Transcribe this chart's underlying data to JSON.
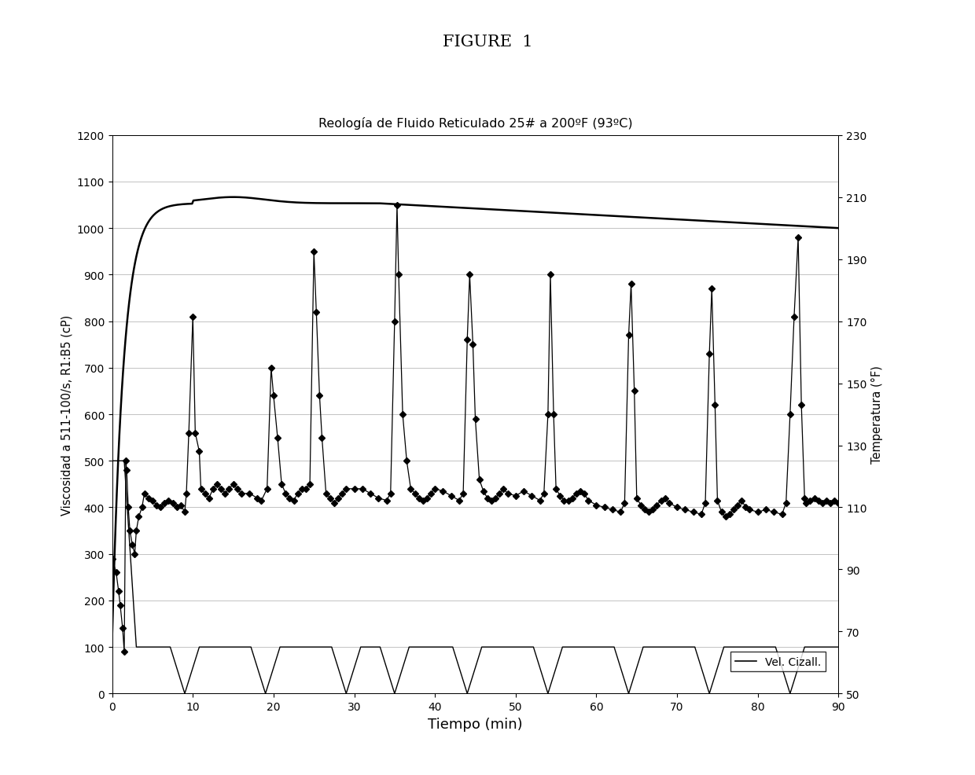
{
  "title_figure": "FIGURE  1",
  "title_chart": "Reología de Fluido Reticulado 25# a 200ºF (93ºC)",
  "xlabel": "Tiempo (min)",
  "ylabel_left": "Viscosidad a 511-100/s, R1:B5 (cP)",
  "ylabel_right": "Temperatura (°F)",
  "xlim": [
    0,
    90
  ],
  "ylim_left": [
    0,
    1200
  ],
  "ylim_right": [
    50,
    230
  ],
  "yticks_left": [
    0,
    100,
    200,
    300,
    400,
    500,
    600,
    700,
    800,
    900,
    1000,
    1100,
    1200
  ],
  "yticks_right": [
    50,
    70,
    90,
    110,
    130,
    150,
    170,
    190,
    210,
    230
  ],
  "xticks": [
    0,
    10,
    20,
    30,
    40,
    50,
    60,
    70,
    80,
    90
  ],
  "legend_label": "Vel. Cizall.",
  "background_color": "#ffffff"
}
